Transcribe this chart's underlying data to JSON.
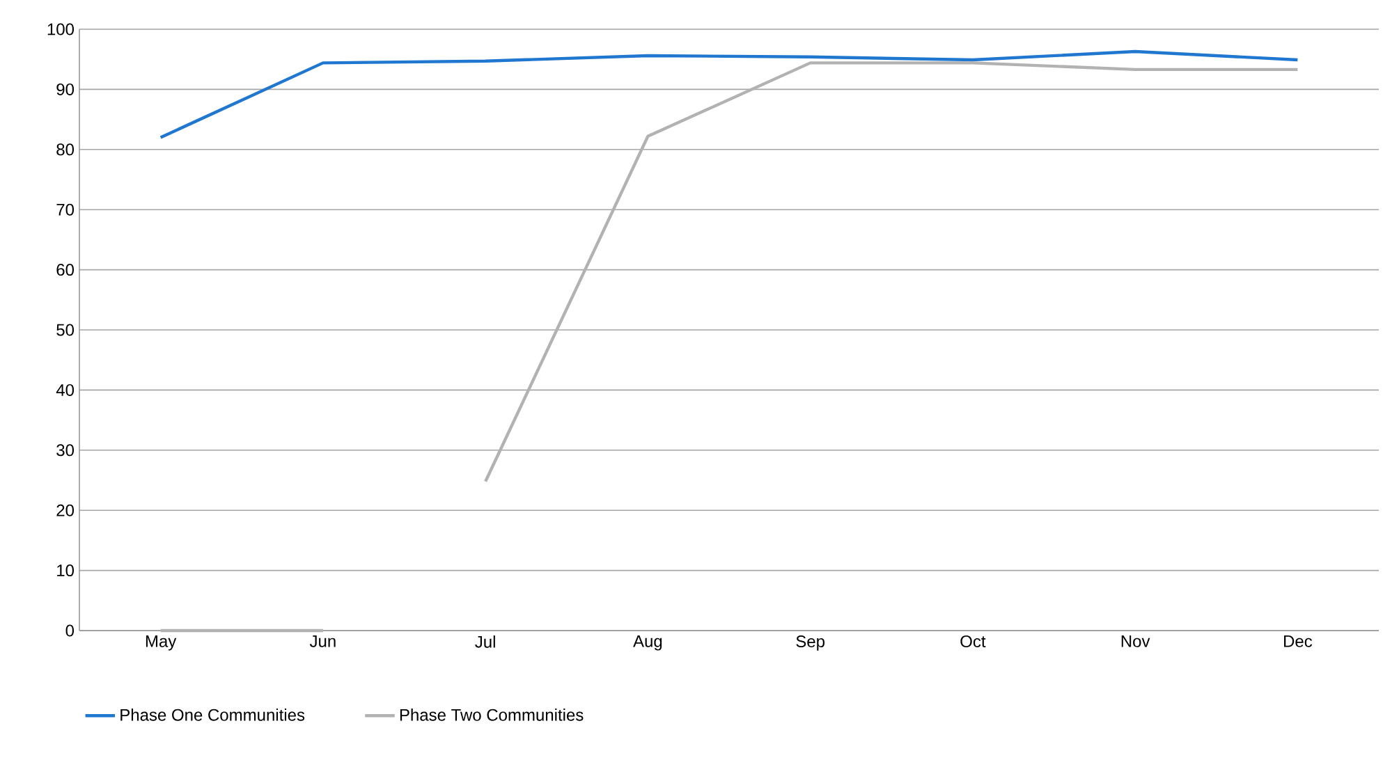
{
  "chart_data": {
    "type": "line",
    "categories": [
      "May",
      "Jun",
      "Jul",
      "Aug",
      "Sep",
      "Oct",
      "Nov",
      "Dec"
    ],
    "series": [
      {
        "name": "Phase One Communities",
        "color": "#1f77d0",
        "values": [
          82,
          94.4,
          94.7,
          95.6,
          95.4,
          94.9,
          96.3,
          94.9
        ]
      },
      {
        "name": "Phase Two Communities",
        "color": "#b2b2b2",
        "values": [
          null,
          null,
          24.8,
          82.2,
          94.4,
          94.4,
          93.3,
          93.3
        ]
      },
      {
        "color": "#b2b2b2",
        "values": [
          0,
          0,
          null,
          null,
          null,
          null,
          null,
          null
        ]
      }
    ],
    "ylim": [
      0,
      100
    ],
    "yticks": [
      0,
      10,
      20,
      30,
      40,
      50,
      60,
      70,
      80,
      90,
      100
    ],
    "grid": "y",
    "legend": "bottom",
    "marker": "none",
    "line_style": "solid"
  }
}
